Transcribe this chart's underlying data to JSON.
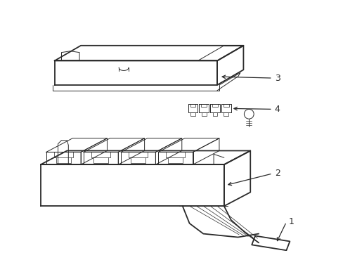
{
  "background_color": "#ffffff",
  "line_color": "#2a2a2a",
  "lw_main": 1.3,
  "lw_thin": 0.7,
  "lw_detail": 0.5,
  "fig_width": 4.89,
  "fig_height": 3.6,
  "dpi": 100
}
